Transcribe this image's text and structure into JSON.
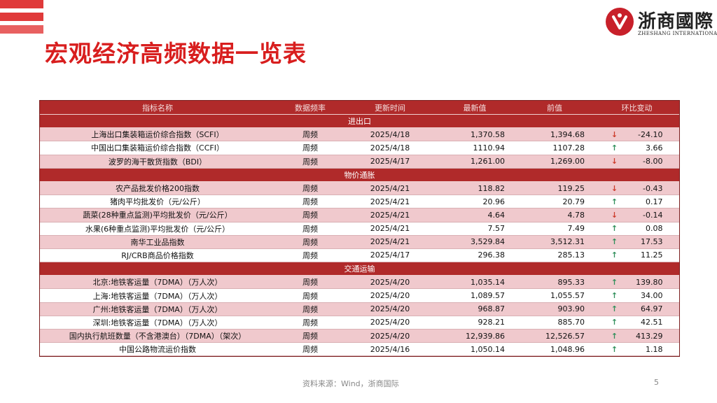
{
  "page_title": "宏观经济高频数据一览表",
  "logo": {
    "cn": "浙商國際",
    "en": "ZHESHANG INTERNATIONAL",
    "colors": {
      "mark": "#c8202a"
    }
  },
  "table": {
    "headers": [
      "指标名称",
      "数据频率",
      "更新时间",
      "最新值",
      "前值",
      "环比变动"
    ],
    "sections": [
      {
        "name": "进出口",
        "rows": [
          {
            "name": "上海出口集装箱运价综合指数（SCFI）",
            "freq": "周频",
            "date": "2025/4/18",
            "latest": "1,370.58",
            "prev": "1,394.68",
            "dir": "down",
            "chg": "-24.10"
          },
          {
            "name": "中国出口集装箱运价综合指数（CCFI）",
            "freq": "周频",
            "date": "2025/4/18",
            "latest": "1110.94",
            "prev": "1107.28",
            "dir": "up",
            "chg": "3.66"
          },
          {
            "name": "波罗的海干散货指数（BDI）",
            "freq": "周频",
            "date": "2025/4/17",
            "latest": "1,261.00",
            "prev": "1,269.00",
            "dir": "down",
            "chg": "-8.00"
          }
        ]
      },
      {
        "name": "物价通胀",
        "rows": [
          {
            "name": "农产品批发价格200指数",
            "freq": "周频",
            "date": "2025/4/21",
            "latest": "118.82",
            "prev": "119.25",
            "dir": "down",
            "chg": "-0.43"
          },
          {
            "name": "猪肉平均批发价（元/公斤）",
            "freq": "周频",
            "date": "2025/4/21",
            "latest": "20.96",
            "prev": "20.79",
            "dir": "up",
            "chg": "0.17"
          },
          {
            "name": "蔬菜(28种重点监测)平均批发价（元/公斤）",
            "freq": "周频",
            "date": "2025/4/21",
            "latest": "4.64",
            "prev": "4.78",
            "dir": "down",
            "chg": "-0.14"
          },
          {
            "name": "水果(6种重点监测)平均批发价（元/公斤）",
            "freq": "周频",
            "date": "2025/4/21",
            "latest": "7.57",
            "prev": "7.49",
            "dir": "up",
            "chg": "0.08"
          },
          {
            "name": "南华工业品指数",
            "freq": "周频",
            "date": "2025/4/21",
            "latest": "3,529.84",
            "prev": "3,512.31",
            "dir": "up",
            "chg": "17.53"
          },
          {
            "name": "RJ/CRB商品价格指数",
            "freq": "周频",
            "date": "2025/4/17",
            "latest": "296.38",
            "prev": "285.13",
            "dir": "up",
            "chg": "11.25"
          }
        ]
      },
      {
        "name": "交通运输",
        "rows": [
          {
            "name": "北京:地铁客运量（7DMA）（万人次）",
            "freq": "周频",
            "date": "2025/4/20",
            "latest": "1,035.14",
            "prev": "895.33",
            "dir": "up",
            "chg": "139.80"
          },
          {
            "name": "上海:地铁客运量（7DMA）（万人次）",
            "freq": "周频",
            "date": "2025/4/20",
            "latest": "1,089.57",
            "prev": "1,055.57",
            "dir": "up",
            "chg": "34.00"
          },
          {
            "name": "广州:地铁客运量（7DMA）（万人次）",
            "freq": "周频",
            "date": "2025/4/20",
            "latest": "968.87",
            "prev": "903.90",
            "dir": "up",
            "chg": "64.97"
          },
          {
            "name": "深圳:地铁客运量（7DMA）（万人次）",
            "freq": "周频",
            "date": "2025/4/20",
            "latest": "928.21",
            "prev": "885.70",
            "dir": "up",
            "chg": "42.51"
          },
          {
            "name": "国内执行航班数量（不含港澳台）（7DMA）（架次）",
            "freq": "周频",
            "date": "2025/4/20",
            "latest": "12,939.86",
            "prev": "12,526.57",
            "dir": "up",
            "chg": "413.29"
          },
          {
            "name": "中国公路物流运价指数",
            "freq": "周频",
            "date": "2025/4/16",
            "latest": "1,050.14",
            "prev": "1,048.96",
            "dir": "up",
            "chg": "1.18"
          }
        ]
      }
    ]
  },
  "footer": {
    "source": "资料来源：Wind，浙商国际",
    "page_number": "5"
  },
  "colors": {
    "header_bg": "#b02a2a",
    "pink_row": "#f0c9cd",
    "up_arrow": "#2f8f5a",
    "down_arrow": "#cc3a2a",
    "title": "#d81e1e"
  }
}
